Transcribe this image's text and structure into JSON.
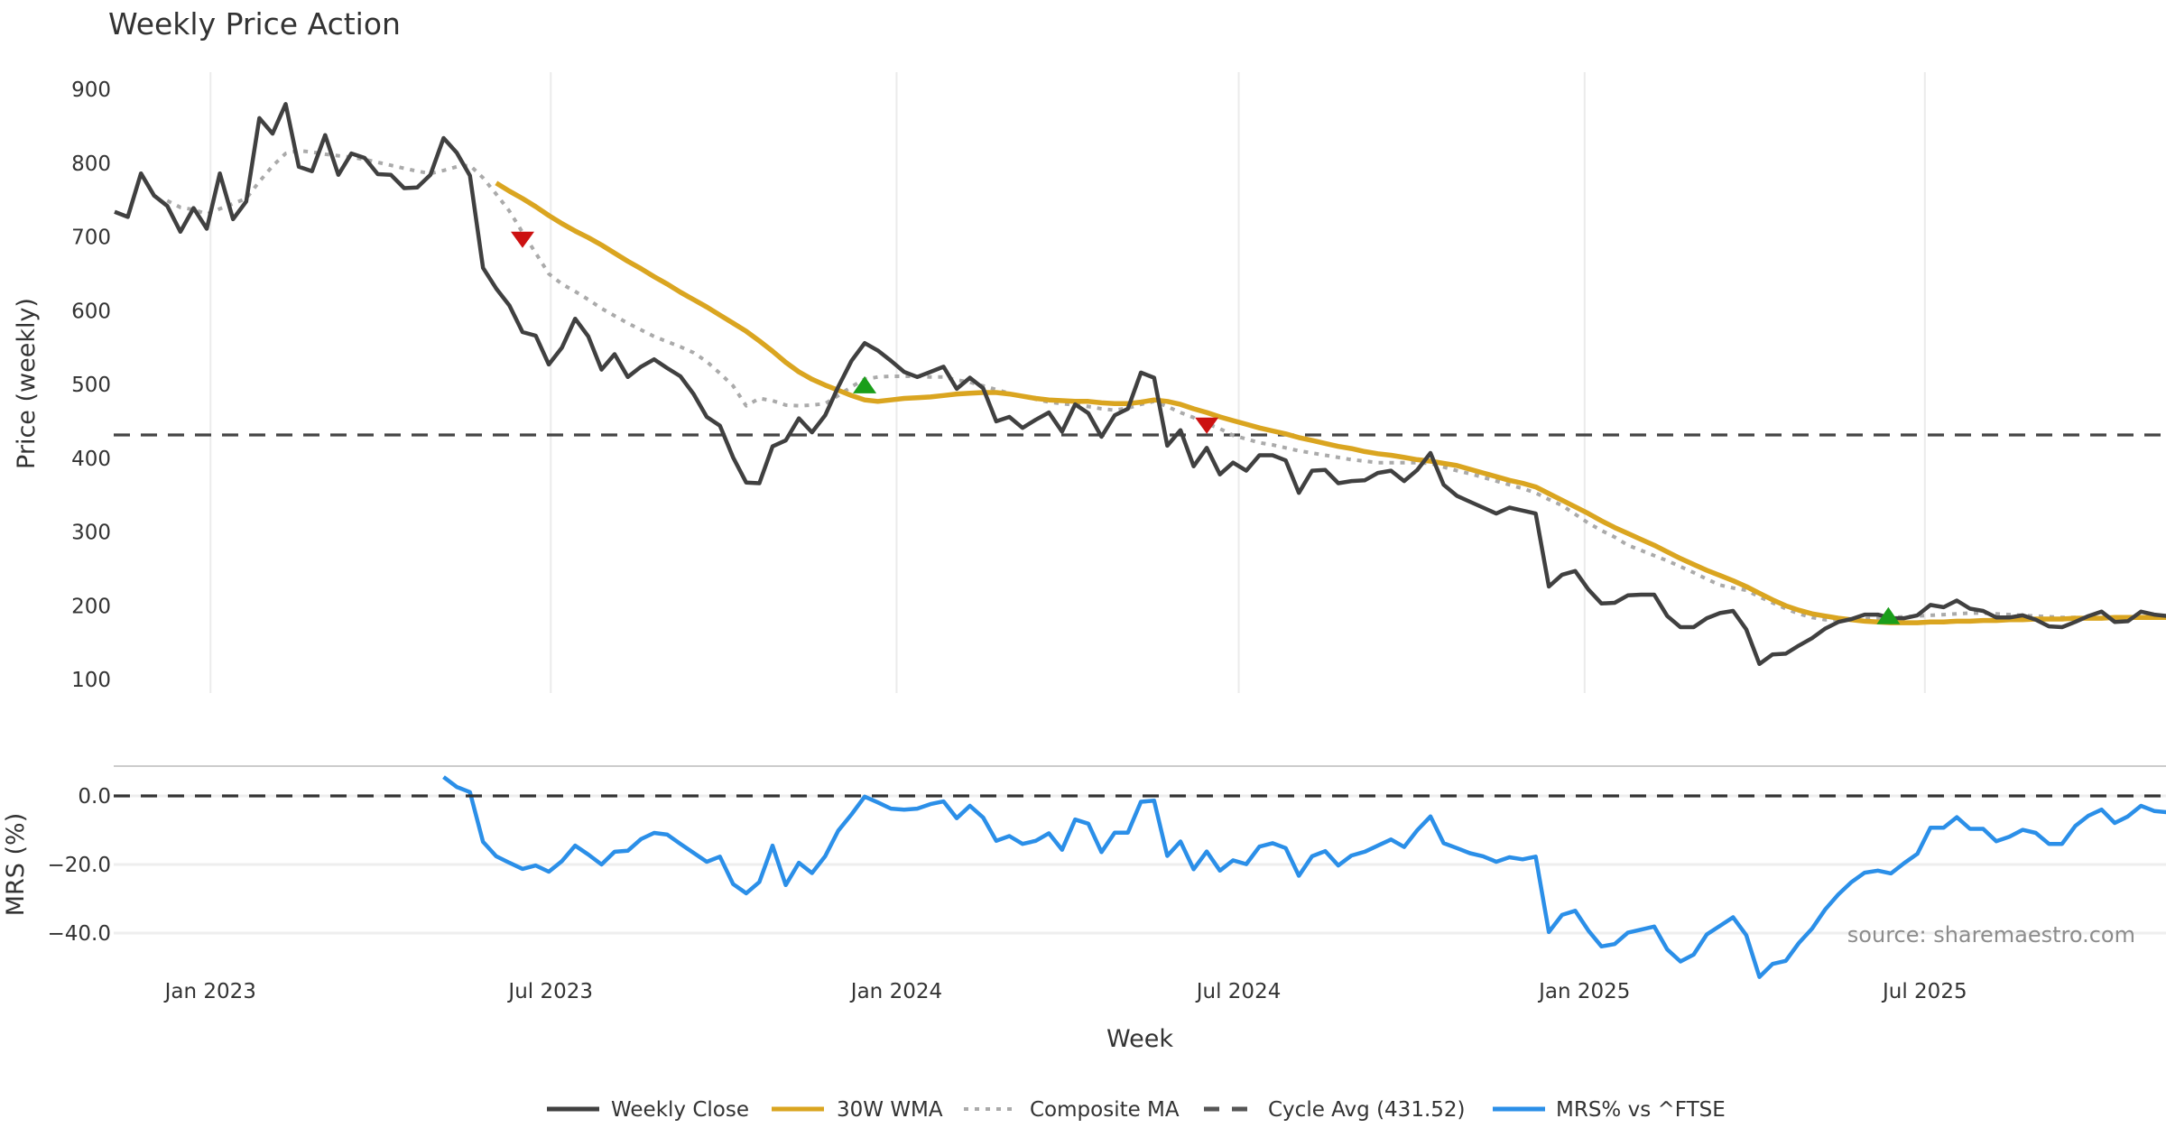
{
  "chart_data": [
    {
      "type": "line",
      "panel": "price",
      "title": "Weekly Price Action",
      "ylabel": "Price (weekly)",
      "xlabel": "Week",
      "ylim": [
        80,
        920
      ],
      "yticks": [
        100,
        200,
        300,
        400,
        500,
        600,
        700,
        800,
        900
      ],
      "grid": "vertical",
      "x_start": "2022-11-11",
      "x_step_days": 7,
      "xticks": [
        {
          "label": "Jan 2023",
          "date": "2023-01-01"
        },
        {
          "label": "Jul 2023",
          "date": "2023-07-01"
        },
        {
          "label": "Jan 2024",
          "date": "2024-01-01"
        },
        {
          "label": "Jul 2024",
          "date": "2024-07-01"
        },
        {
          "label": "Jan 2025",
          "date": "2025-01-01"
        },
        {
          "label": "Jul 2025",
          "date": "2025-07-01"
        }
      ],
      "series": [
        {
          "name": "Weekly Close",
          "color": "#404040",
          "style": "solid",
          "start_index": 0,
          "values": [
            734,
            727,
            786,
            756,
            742,
            707,
            739,
            711,
            786,
            724,
            748,
            861,
            840,
            880,
            795,
            789,
            838,
            784,
            813,
            807,
            785,
            784,
            766,
            767,
            784,
            834,
            814,
            783,
            658,
            630,
            607,
            571,
            566,
            527,
            550,
            589,
            565,
            520,
            541,
            510,
            524,
            534,
            522,
            511,
            487,
            456,
            444,
            401,
            367,
            366,
            416,
            424,
            454,
            435,
            458,
            497,
            532,
            556,
            546,
            532,
            517,
            510,
            517,
            524,
            494,
            509,
            495,
            450,
            456,
            441,
            452,
            462,
            436,
            473,
            461,
            429,
            458,
            467,
            516,
            509,
            417,
            438,
            389,
            414,
            378,
            394,
            383,
            404,
            404,
            397,
            353,
            383,
            384,
            366,
            369,
            370,
            380,
            383,
            369,
            384,
            407,
            364,
            349,
            341,
            333,
            325,
            333,
            329,
            325,
            226,
            242,
            247,
            222,
            203,
            204,
            214,
            215,
            215,
            186,
            171,
            171,
            183,
            190,
            193,
            168,
            121,
            134,
            135,
            146,
            156,
            169,
            178,
            182,
            188,
            188,
            183,
            183,
            187,
            201,
            198,
            207,
            196,
            193,
            184,
            184,
            187,
            181,
            172,
            171,
            178,
            186,
            192,
            178,
            179,
            192,
            188,
            186
          ]
        },
        {
          "name": "30W WMA",
          "color": "#DAA520",
          "style": "solid",
          "start_index": 29,
          "values": [
            773,
            762,
            752,
            741,
            729,
            718,
            708,
            699,
            689,
            678,
            667,
            657,
            646,
            636,
            625,
            615,
            605,
            594,
            583,
            572,
            559,
            545,
            530,
            517,
            507,
            499,
            492,
            485,
            479,
            477,
            479,
            481,
            482,
            483,
            485,
            487,
            488,
            489,
            489,
            487,
            484,
            481,
            479,
            478,
            477,
            477,
            475,
            474,
            474,
            476,
            479,
            477,
            473,
            467,
            462,
            456,
            451,
            446,
            441,
            437,
            433,
            428,
            424,
            420,
            416,
            413,
            409,
            406,
            404,
            401,
            398,
            396,
            393,
            390,
            385,
            380,
            375,
            370,
            366,
            361,
            352,
            343,
            334,
            325,
            315,
            306,
            298,
            290,
            282,
            273,
            264,
            256,
            248,
            241,
            234,
            226,
            217,
            208,
            200,
            194,
            189,
            186,
            183,
            181,
            179,
            178,
            177,
            177,
            177,
            178,
            178,
            179,
            179,
            180,
            180,
            181,
            181,
            182,
            182,
            182,
            183,
            183,
            183,
            184,
            184,
            184,
            184,
            184
          ]
        },
        {
          "name": "Composite MA",
          "color": "#AAAAAA",
          "style": "dotted",
          "start_index": 4,
          "values": [
            749,
            740,
            737,
            731,
            738,
            745,
            752,
            775,
            796,
            813,
            817,
            815,
            812,
            810,
            808,
            805,
            801,
            797,
            793,
            789,
            786,
            790,
            795,
            797,
            780,
            758,
            735,
            706,
            678,
            650,
            636,
            626,
            615,
            603,
            593,
            583,
            574,
            565,
            558,
            551,
            543,
            531,
            515,
            498,
            471,
            481,
            478,
            472,
            471,
            472,
            474,
            485,
            497,
            507,
            510,
            511,
            511,
            511,
            510,
            510,
            506,
            503,
            498,
            493,
            488,
            484,
            480,
            476,
            474,
            472,
            470,
            467,
            465,
            468,
            473,
            477,
            470,
            462,
            455,
            447,
            440,
            431,
            426,
            421,
            418,
            414,
            410,
            407,
            404,
            401,
            398,
            396,
            394,
            394,
            394,
            394,
            393,
            388,
            383,
            379,
            374,
            369,
            364,
            359,
            353,
            344,
            336,
            324,
            312,
            302,
            293,
            282,
            275,
            268,
            261,
            253,
            245,
            236,
            228,
            224,
            221,
            212,
            204,
            196,
            189,
            184,
            181,
            181,
            181,
            182,
            183,
            184,
            185,
            186,
            187,
            188,
            189,
            190,
            190,
            189,
            188,
            187,
            186,
            185,
            184,
            184,
            183,
            183,
            184,
            184,
            185,
            185,
            185
          ]
        },
        {
          "name": "Cycle Avg (431.52)",
          "color": "#444444",
          "style": "dashed",
          "constant": 431.52
        }
      ],
      "signals": [
        {
          "type": "sell",
          "index": 31,
          "value": 696,
          "color": "#CC1111"
        },
        {
          "type": "buy",
          "index": 57,
          "value": 499,
          "color": "#1A9E1A"
        },
        {
          "type": "sell",
          "index": 83,
          "value": 444,
          "color": "#CC1111"
        },
        {
          "type": "buy",
          "index": 134.8,
          "value": 186,
          "color": "#1A9E1A"
        }
      ]
    },
    {
      "type": "line",
      "panel": "mrs",
      "ylabel": "MRS (%)",
      "ylim": [
        -56,
        8
      ],
      "yticks": [
        0.0,
        -20.0,
        -40.0
      ],
      "ytick_labels": [
        "0.0",
        "−20.0",
        "−40.0"
      ],
      "grid": "horizontal",
      "series": [
        {
          "name": "MRS% vs ^FTSE",
          "color": "#2B8FE8",
          "style": "solid",
          "start_index": 25,
          "values": [
            5.5,
            2.6,
            1.1,
            -13.4,
            -17.6,
            -19.5,
            -21.3,
            -20.3,
            -22.1,
            -19.0,
            -14.5,
            -17.1,
            -20.0,
            -16.3,
            -16.0,
            -12.6,
            -10.8,
            -11.3,
            -14.0,
            -16.6,
            -19.2,
            -17.7,
            -25.7,
            -28.4,
            -25.1,
            -14.5,
            -26.0,
            -19.5,
            -22.5,
            -17.6,
            -10.1,
            -5.4,
            -0.2,
            -1.9,
            -3.7,
            -4.0,
            -3.7,
            -2.4,
            -1.6,
            -6.5,
            -2.9,
            -6.3,
            -13.1,
            -11.7,
            -14.0,
            -13.1,
            -10.9,
            -15.7,
            -6.9,
            -8.1,
            -16.4,
            -10.7,
            -10.7,
            -1.7,
            -1.4,
            -17.5,
            -13.3,
            -21.4,
            -16.2,
            -21.8,
            -18.8,
            -19.9,
            -14.8,
            -13.8,
            -15.2,
            -23.3,
            -17.6,
            -16.1,
            -20.3,
            -17.4,
            -16.3,
            -14.5,
            -12.7,
            -14.9,
            -10.0,
            -6.0,
            -13.8,
            -15.2,
            -16.7,
            -17.6,
            -19.2,
            -17.9,
            -18.5,
            -17.7,
            -39.7,
            -34.7,
            -33.5,
            -39.3,
            -43.9,
            -43.2,
            -39.9,
            -39.0,
            -38.1,
            -44.8,
            -48.3,
            -46.3,
            -40.4,
            -37.9,
            -35.4,
            -40.6,
            -52.8,
            -49.0,
            -48.1,
            -42.9,
            -38.7,
            -33.1,
            -28.7,
            -25.1,
            -22.4,
            -21.8,
            -22.6,
            -19.6,
            -16.9,
            -9.3,
            -9.3,
            -6.2,
            -9.6,
            -9.6,
            -13.2,
            -11.9,
            -9.9,
            -10.8,
            -14.0,
            -14.0,
            -8.8,
            -5.8,
            -4.0,
            -7.9,
            -6.0,
            -2.9,
            -4.4,
            -4.8
          ]
        },
        {
          "name": "zero line",
          "color": "#333333",
          "style": "dashed",
          "constant": 0
        }
      ]
    }
  ],
  "legend": {
    "placement": "bottom-center",
    "items": [
      {
        "label": "Weekly Close",
        "color": "#404040",
        "style": "solid"
      },
      {
        "label": "30W WMA",
        "color": "#DAA520",
        "style": "solid"
      },
      {
        "label": "Composite MA",
        "color": "#AAAAAA",
        "style": "dotted"
      },
      {
        "label": "Cycle Avg (431.52)",
        "color": "#555555",
        "style": "dashed"
      },
      {
        "label": "MRS% vs ^FTSE",
        "color": "#2B8FE8",
        "style": "solid"
      }
    ]
  },
  "source_note": "source: sharemaestro.com"
}
